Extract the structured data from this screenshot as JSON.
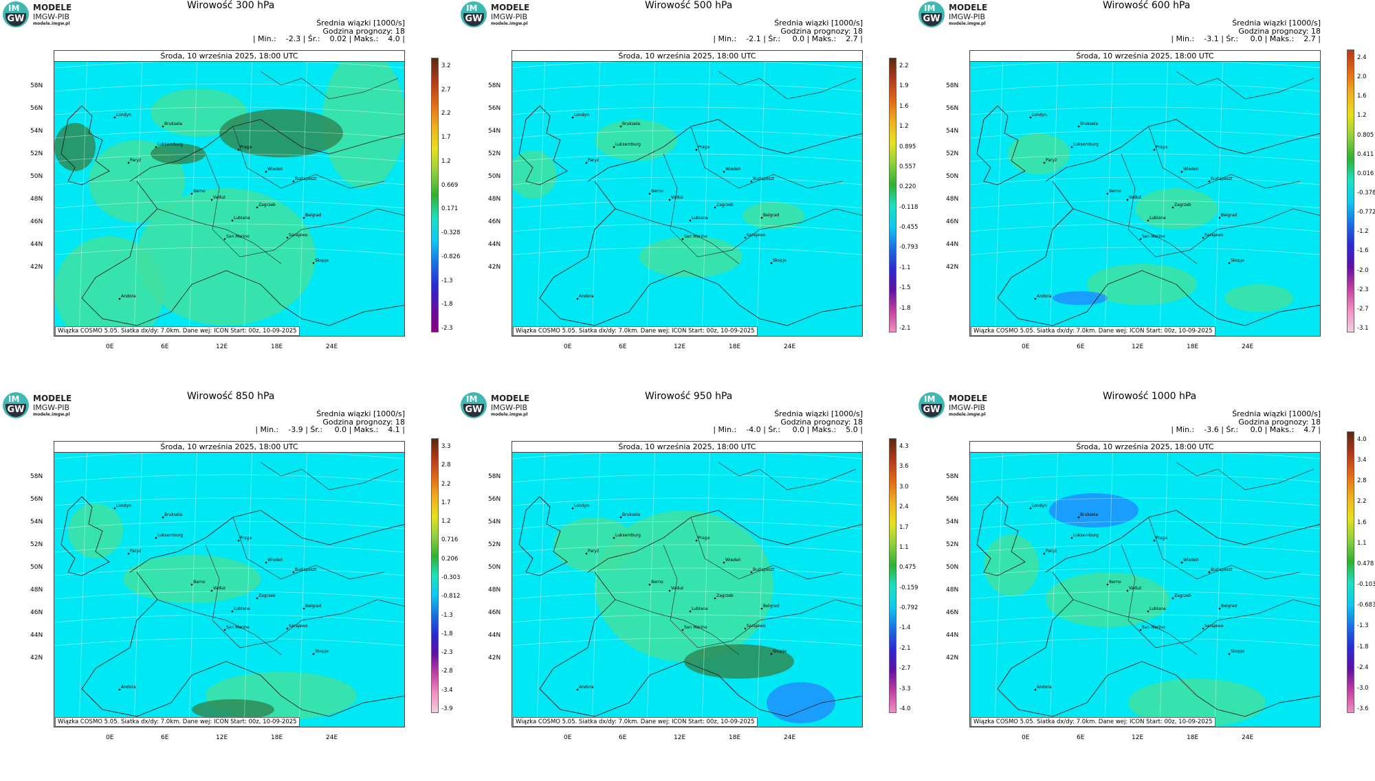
{
  "logo": {
    "line1": "MODELE",
    "line2": "IMGW-PIB",
    "line3": "modele.imgw.pl",
    "badge_top": "IM",
    "badge_bottom": "GW"
  },
  "common": {
    "subtitle_label": "Średnia wiązki [1000/s]",
    "forecast_hour": "Godzina prognozy: 18",
    "date_header": "Środa, 10 września 2025, 18:00 UTC",
    "footnote": "Wiązka  COSMO 5.05. Siatka dx/dy: 7.0km. Dane wej: ICON Start: 00z, 10-09-2025",
    "lat_labels": [
      "58N",
      "56N",
      "54N",
      "52N",
      "50N",
      "48N",
      "46N",
      "44N",
      "42N"
    ],
    "lon_labels": [
      "0E",
      "6E",
      "12E",
      "18E",
      "24E"
    ],
    "cities": [
      "Londyn",
      "Bruksela",
      "Luksemburg",
      "Paryż",
      "Praga",
      "Wiedeń",
      "Budapeszt",
      "Berno",
      "Vaduz",
      "Zagrzeb",
      "Belgrad",
      "Lublana",
      "San Marino",
      "Sarajewo",
      "Skopje",
      "Andora"
    ]
  },
  "panels": [
    {
      "title": "Wirowość 300 hPa",
      "stats": "| Min.:    -2.3 | Śr.:    0.02 | Maks.:    4.0 |",
      "colorbar": [
        "3.2",
        "2.7",
        "2.2",
        "1.7",
        "1.2",
        "0.669",
        "0.171",
        "-0.328",
        "-0.826",
        "-1.3",
        "-1.8",
        "-2.3"
      ]
    },
    {
      "title": "Wirowość 500 hPa",
      "stats": "| Min.:    -2.1 | Śr.:     0.0 | Maks.:    2.7 |",
      "colorbar": [
        "2.2",
        "1.9",
        "1.6",
        "1.2",
        "0.895",
        "0.557",
        "0.220",
        "-0.118",
        "-0.455",
        "-0.793",
        "-1.1",
        "-1.5",
        "-1.8",
        "-2.1"
      ]
    },
    {
      "title": "Wirowość 600 hPa",
      "stats": "| Min.:    -3.1 | Śr.:     0.0 | Maks.:    2.7 |",
      "colorbar": [
        "2.4",
        "2.0",
        "1.6",
        "1.2",
        "0.805",
        "0.411",
        "0.016",
        "-0.378",
        "-0.772",
        "-1.2",
        "-1.6",
        "-2.0",
        "-2.3",
        "-2.7",
        "-3.1"
      ]
    },
    {
      "title": "Wirowość 850 hPa",
      "stats": "| Min.:    -3.9 | Śr.:     0.0 | Maks.:    4.1 |",
      "colorbar": [
        "3.3",
        "2.8",
        "2.2",
        "1.7",
        "1.2",
        "0.716",
        "0.206",
        "-0.303",
        "-0.812",
        "-1.3",
        "-1.8",
        "-2.3",
        "-2.8",
        "-3.4",
        "-3.9"
      ]
    },
    {
      "title": "Wirowość 950 hPa",
      "stats": "| Min.:    -4.0 | Śr.:     0.0 | Maks.:    5.0 |",
      "colorbar": [
        "4.3",
        "3.6",
        "3.0",
        "2.4",
        "1.7",
        "1.1",
        "0.475",
        "-0.159",
        "-0.792",
        "-1.4",
        "-2.1",
        "-2.7",
        "-3.3",
        "-4.0"
      ]
    },
    {
      "title": "Wirowość 1000 hPa",
      "stats": "| Min.:    -3.6 | Śr.:     0.0 | Maks.:    4.7 |",
      "colorbar": [
        "4.0",
        "3.4",
        "2.8",
        "2.2",
        "1.6",
        "1.1",
        "0.478",
        "-0.103",
        "-0.683",
        "-1.3",
        "-1.8",
        "-2.4",
        "-3.0",
        "-3.6"
      ]
    }
  ],
  "colors": {
    "field_base": "#00e8f4",
    "field_pos": "#3fe0a0",
    "strong_pos": "#2e8b57",
    "neg": "#1e90ff"
  }
}
